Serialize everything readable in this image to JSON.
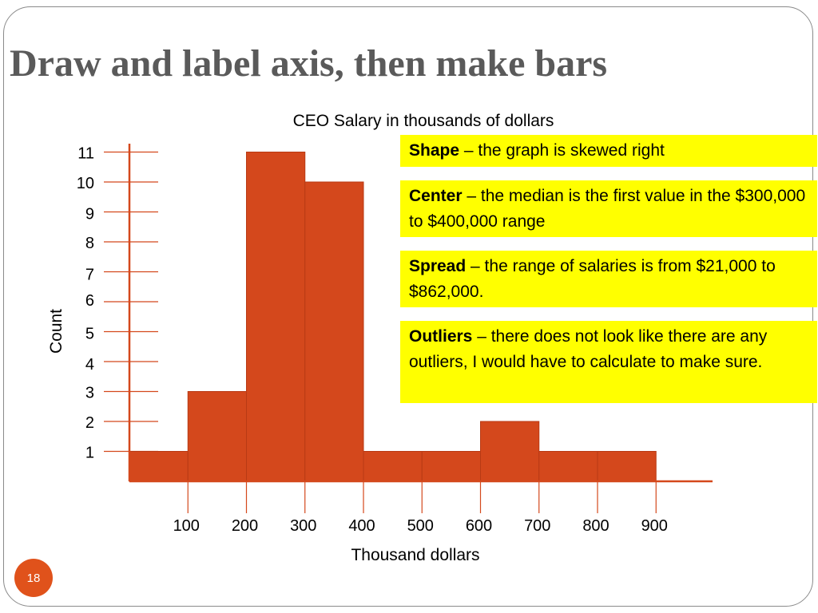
{
  "slide": {
    "title": "Draw and label axis, then make bars",
    "page_number": "18"
  },
  "callouts": [
    {
      "term": "Shape",
      "text": " – the graph is skewed right"
    },
    {
      "term": "Center",
      "text": " – the median is the first value in the $300,000 to $400,000 range"
    },
    {
      "term": "Spread",
      "text": " – the range of salaries is from $21,000 to $862,000."
    },
    {
      "term": "Outliers",
      "text": " – there does not look like there are any outliers, I would have to calculate to make sure."
    }
  ],
  "colors": {
    "bar": "#d4481c",
    "accent": "#e0521b",
    "callout_bg": "#ffff00",
    "title": "#5a5a5a"
  },
  "chart_data": {
    "type": "bar",
    "title": "CEO Salary in thousands of dollars",
    "xlabel": "Thousand dollars",
    "ylabel": "Count",
    "bins": [
      {
        "from": 0,
        "to": 100,
        "count": 1
      },
      {
        "from": 100,
        "to": 200,
        "count": 3
      },
      {
        "from": 200,
        "to": 300,
        "count": 11
      },
      {
        "from": 300,
        "to": 400,
        "count": 10
      },
      {
        "from": 400,
        "to": 500,
        "count": 1
      },
      {
        "from": 500,
        "to": 600,
        "count": 1
      },
      {
        "from": 600,
        "to": 700,
        "count": 2
      },
      {
        "from": 700,
        "to": 800,
        "count": 1
      },
      {
        "from": 800,
        "to": 900,
        "count": 1
      }
    ],
    "x_ticks": [
      "100",
      "200",
      "300",
      "400",
      "500",
      "600",
      "700",
      "800",
      "900"
    ],
    "y_ticks": [
      "1",
      "2",
      "3",
      "4",
      "5",
      "6",
      "7",
      "8",
      "9",
      "10",
      "11"
    ],
    "xlim": [
      0,
      1000
    ],
    "ylim": [
      0,
      11
    ],
    "grid": false,
    "legend": "none"
  }
}
